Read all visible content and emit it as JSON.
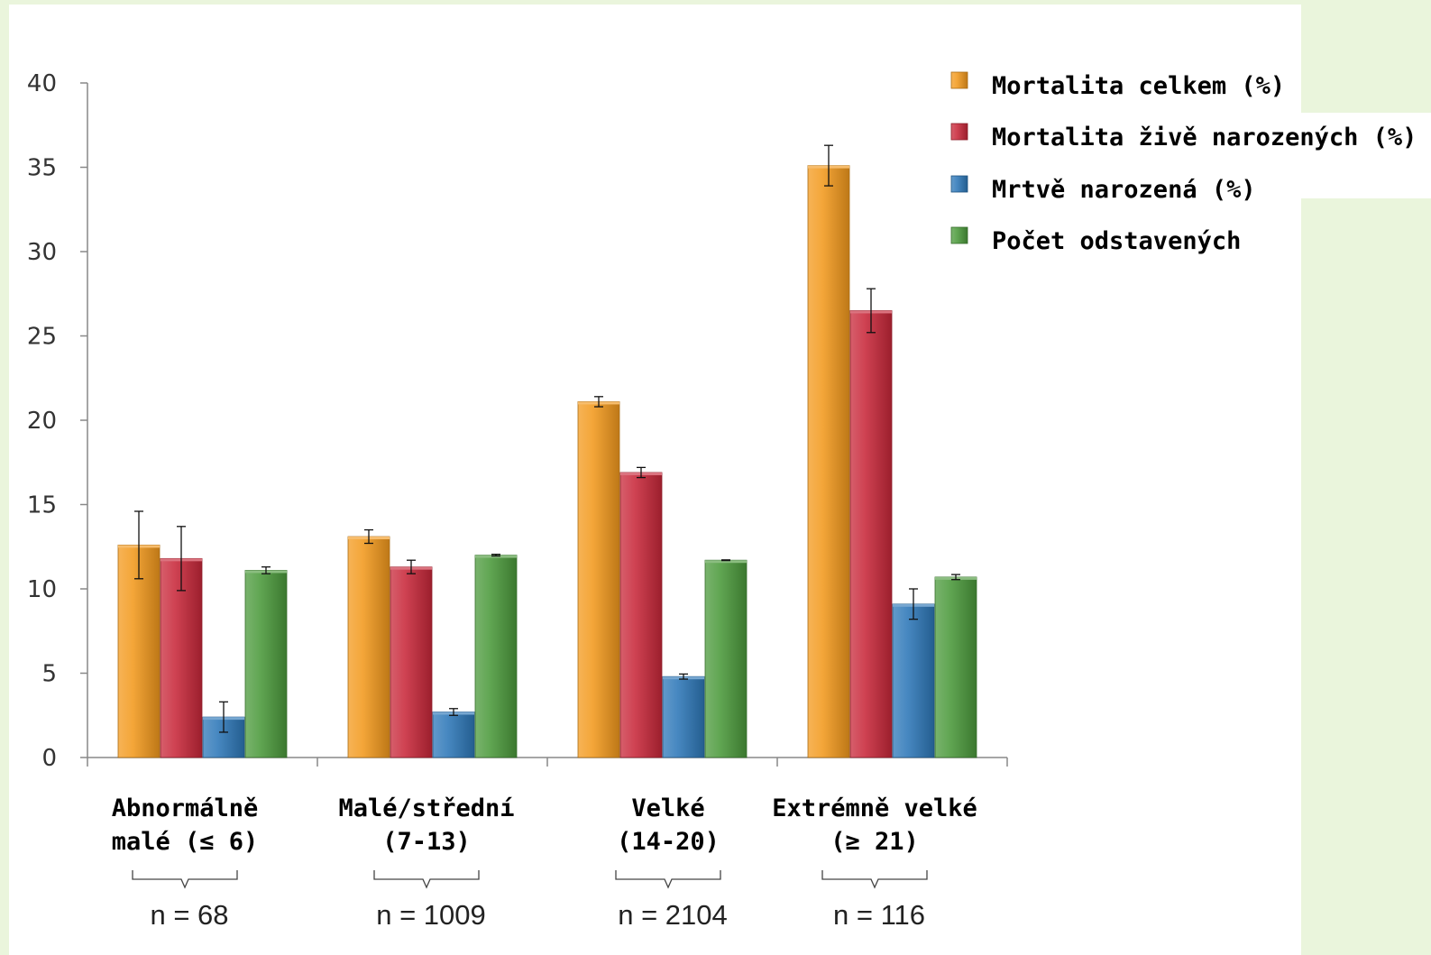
{
  "chart_data": {
    "type": "bar",
    "categories": [
      [
        "Abnormálně",
        "malé (≤ 6)"
      ],
      [
        "Malé/střední",
        "(7-13)"
      ],
      [
        "Velké",
        "(14-20)"
      ],
      [
        "Extrémně  velké",
        "(≥ 21)"
      ]
    ],
    "sample_sizes": [
      "n = 68",
      "n = 1009",
      "n = 2104",
      "n = 116"
    ],
    "series": [
      {
        "name": "Mortalita celkem (%)",
        "color": "#f39a1e",
        "values": [
          12.6,
          13.1,
          21.1,
          35.1
        ],
        "errors": [
          2.0,
          0.4,
          0.3,
          1.2
        ]
      },
      {
        "name": "Mortalita živě narozených (%)",
        "color": "#c8283a",
        "values": [
          11.8,
          11.3,
          16.9,
          26.5
        ],
        "errors": [
          1.9,
          0.4,
          0.3,
          1.3
        ]
      },
      {
        "name": "Mrtvě narozená  (%)",
        "color": "#2e78b8",
        "values": [
          2.4,
          2.7,
          4.8,
          9.1
        ],
        "errors": [
          0.9,
          0.2,
          0.15,
          0.9
        ]
      },
      {
        "name": "Počet odstavených",
        "color": "#4c9a3c",
        "values": [
          11.1,
          12.0,
          11.7,
          10.7
        ],
        "errors": [
          0.2,
          0.05,
          0.02,
          0.15
        ]
      }
    ],
    "y_ticks": [
      "0",
      "5",
      "10",
      "15",
      "20",
      "25",
      "30",
      "35",
      "40"
    ],
    "ylim": [
      0,
      40
    ],
    "grid": false,
    "legend_position": "top-right"
  }
}
